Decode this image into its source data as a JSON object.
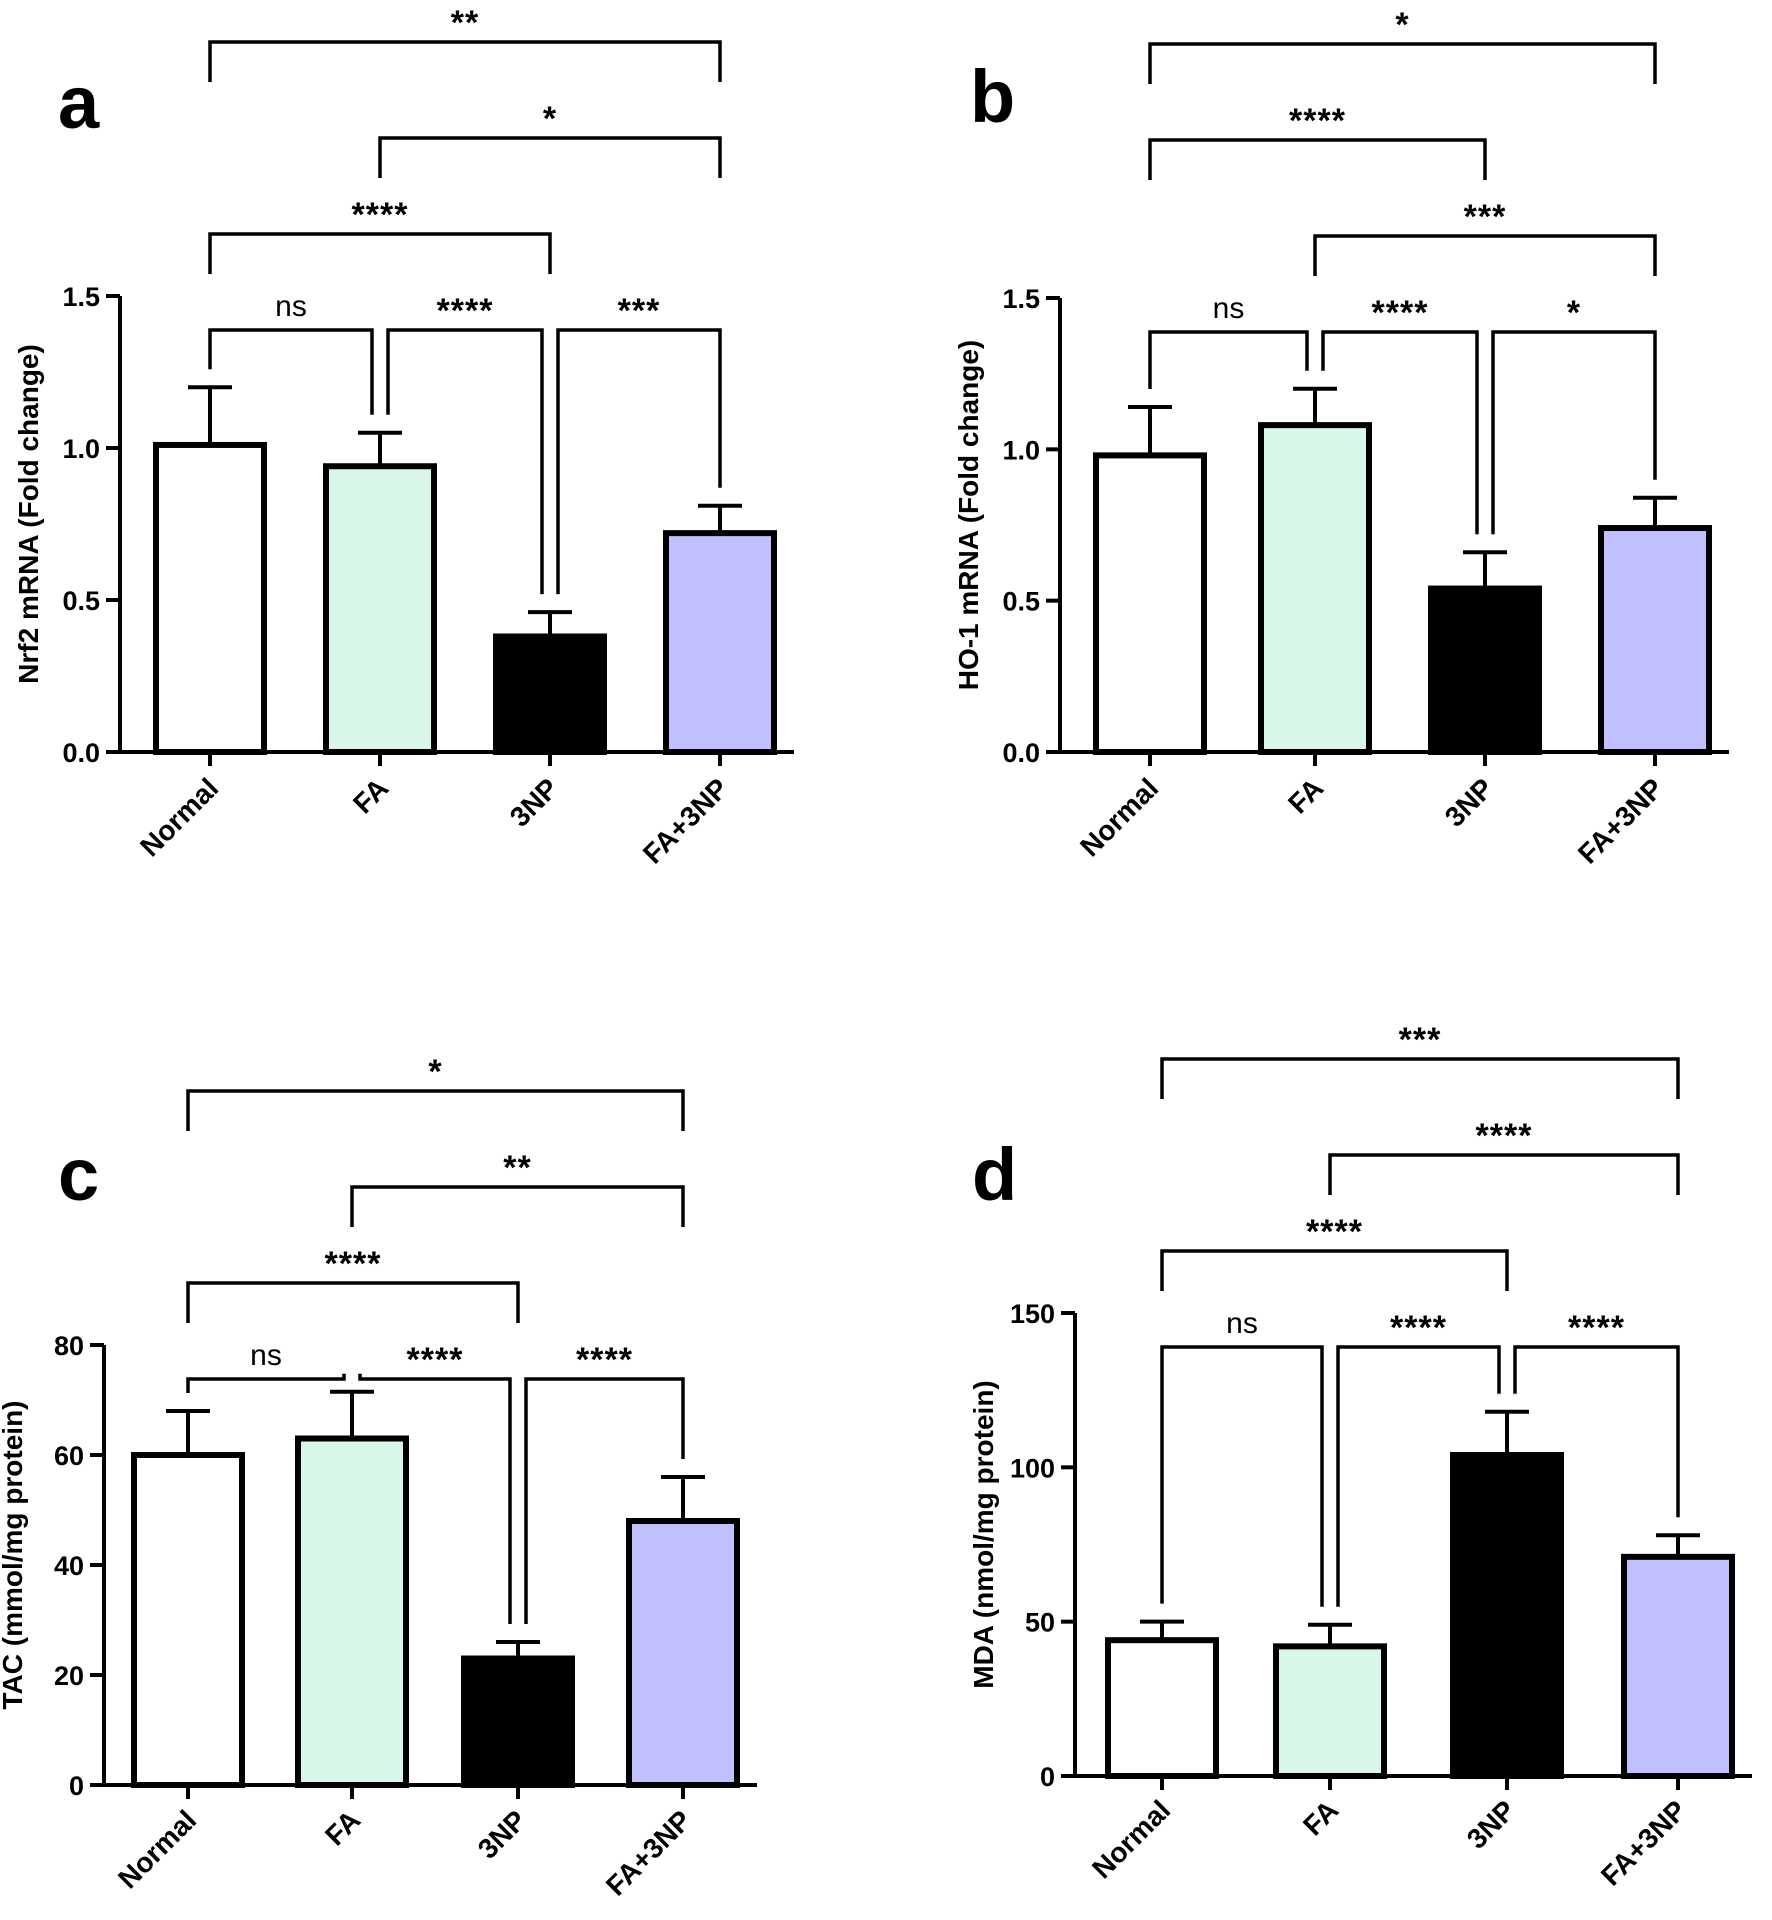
{
  "chart_data": [
    {
      "panel": "a",
      "type": "bar",
      "categories": [
        "Normal",
        "FA",
        "3NP",
        "FA+3NP"
      ],
      "values": [
        1.01,
        0.94,
        0.38,
        0.72
      ],
      "errors": [
        0.19,
        0.11,
        0.08,
        0.09
      ],
      "ylabel": "Nrf2 mRNA (Fold change)",
      "ylim": [
        0,
        1.5
      ],
      "yticks": [
        0.0,
        0.5,
        1.0,
        1.5
      ],
      "ytick_labels": [
        "0.0",
        "0.5",
        "1.0",
        "1.5"
      ],
      "comparisons": [
        {
          "from": 0,
          "to": 1,
          "label": "ns"
        },
        {
          "from": 1,
          "to": 2,
          "label": "****"
        },
        {
          "from": 2,
          "to": 3,
          "label": "***"
        },
        {
          "from": 0,
          "to": 2,
          "label": "****"
        },
        {
          "from": 1,
          "to": 3,
          "label": "*"
        },
        {
          "from": 0,
          "to": 3,
          "label": "**"
        }
      ]
    },
    {
      "panel": "b",
      "type": "bar",
      "categories": [
        "Normal",
        "FA",
        "3NP",
        "FA+3NP"
      ],
      "values": [
        0.98,
        1.08,
        0.54,
        0.74
      ],
      "errors": [
        0.16,
        0.12,
        0.12,
        0.1
      ],
      "ylabel": "HO-1 mRNA (Fold change)",
      "ylim": [
        0,
        1.5
      ],
      "yticks": [
        0.0,
        0.5,
        1.0,
        1.5
      ],
      "ytick_labels": [
        "0.0",
        "0.5",
        "1.0",
        "1.5"
      ],
      "comparisons": [
        {
          "from": 0,
          "to": 1,
          "label": "ns"
        },
        {
          "from": 1,
          "to": 2,
          "label": "****"
        },
        {
          "from": 2,
          "to": 3,
          "label": "*"
        },
        {
          "from": 1,
          "to": 3,
          "label": "***"
        },
        {
          "from": 0,
          "to": 2,
          "label": "****"
        },
        {
          "from": 0,
          "to": 3,
          "label": "*"
        }
      ]
    },
    {
      "panel": "c",
      "type": "bar",
      "categories": [
        "Normal",
        "FA",
        "3NP",
        "FA+3NP"
      ],
      "values": [
        60,
        63,
        23,
        48
      ],
      "errors": [
        8,
        8.5,
        3,
        8
      ],
      "ylabel": "TAC (mmol/mg protein)",
      "ylim": [
        0,
        80
      ],
      "yticks": [
        0,
        20,
        40,
        60,
        80
      ],
      "ytick_labels": [
        "0",
        "20",
        "40",
        "60",
        "80"
      ],
      "comparisons": [
        {
          "from": 0,
          "to": 1,
          "label": "ns"
        },
        {
          "from": 1,
          "to": 2,
          "label": "****"
        },
        {
          "from": 2,
          "to": 3,
          "label": "****"
        },
        {
          "from": 0,
          "to": 2,
          "label": "****"
        },
        {
          "from": 1,
          "to": 3,
          "label": "**"
        },
        {
          "from": 0,
          "to": 3,
          "label": "*"
        }
      ]
    },
    {
      "panel": "d",
      "type": "bar",
      "categories": [
        "Normal",
        "FA",
        "3NP",
        "FA+3NP"
      ],
      "values": [
        44,
        42,
        104,
        71
      ],
      "errors": [
        6,
        7,
        14,
        7
      ],
      "ylabel": "MDA (nmol/mg protein)",
      "ylim": [
        0,
        150
      ],
      "yticks": [
        0,
        50,
        100,
        150
      ],
      "ytick_labels": [
        "0",
        "50",
        "100",
        "150"
      ],
      "comparisons": [
        {
          "from": 0,
          "to": 1,
          "label": "ns"
        },
        {
          "from": 1,
          "to": 2,
          "label": "****"
        },
        {
          "from": 2,
          "to": 3,
          "label": "****"
        },
        {
          "from": 0,
          "to": 2,
          "label": "****"
        },
        {
          "from": 1,
          "to": 3,
          "label": "****"
        },
        {
          "from": 0,
          "to": 3,
          "label": "***"
        }
      ]
    }
  ],
  "bar_colors": [
    "#ffffff",
    "#d9f7e8",
    "#000000",
    "#c0c0ff"
  ],
  "bar_stroke": "#000000"
}
